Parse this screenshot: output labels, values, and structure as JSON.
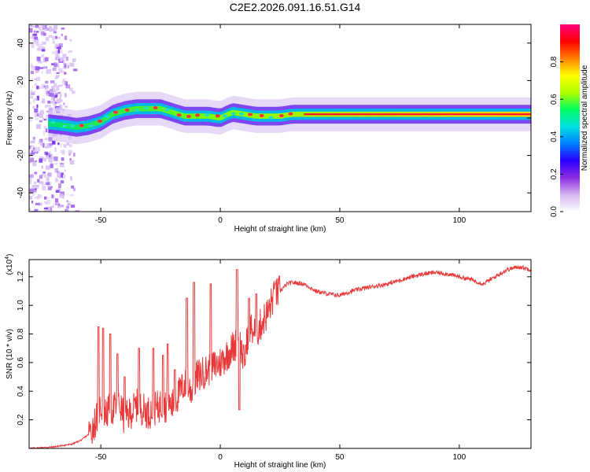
{
  "title": "C2E2.2026.091.16.51.G14",
  "chart_data": [
    {
      "type": "heatmap",
      "xlabel": "Height of straight line (km)",
      "ylabel": "Frequency (Hz)",
      "xlim": [
        -80,
        130
      ],
      "ylim": [
        -50,
        50
      ],
      "xticks": [
        -50,
        0,
        50,
        100
      ],
      "yticks": [
        -40,
        -20,
        0,
        20,
        40
      ],
      "colorbar": {
        "label": "Normalized spectral amplitude",
        "range": [
          0,
          1
        ],
        "ticks": [
          "0.0",
          "0.2",
          "0.4",
          "0.6",
          "0.8"
        ],
        "colors": [
          "#ffffff",
          "#d6b4f0",
          "#8a2be2",
          "#2a00ff",
          "#0080ff",
          "#00e0e0",
          "#00ff60",
          "#b0ff00",
          "#ffff00",
          "#ff8000",
          "#ff0000",
          "#ff0080"
        ]
      },
      "ridge": {
        "x": [
          -72,
          -65,
          -60,
          -55,
          -50,
          -45,
          -40,
          -35,
          -30,
          -25,
          -20,
          -15,
          -10,
          -5,
          0,
          5,
          10,
          15,
          20,
          25,
          30,
          40,
          60,
          90,
          130
        ],
        "freq": [
          -3,
          -4,
          -5,
          -4,
          -2,
          2,
          4,
          5,
          5,
          5,
          3,
          1,
          1,
          1,
          0,
          3,
          2,
          1,
          1,
          1,
          2,
          2,
          2,
          2,
          2
        ]
      },
      "noise_zone_x": [
        -80,
        -60
      ]
    },
    {
      "type": "line",
      "xlabel": "Height of straight line (km)",
      "ylabel": "SNR (10 * v/v)",
      "y_multiplier": "(x10",
      "y_multiplier_exp": "4",
      "y_multiplier_close": ")",
      "xlim": [
        -80,
        130
      ],
      "ylim": [
        0,
        1.32
      ],
      "xticks": [
        -50,
        0,
        50,
        100
      ],
      "yticks": [
        0.2,
        0.4,
        0.6,
        0.8,
        1.0,
        1.2
      ],
      "color": "#e8393a",
      "series": [
        {
          "x": [
            -80,
            -70,
            -62,
            -58,
            -55,
            -52,
            -50,
            -48,
            -45,
            -42,
            -40,
            -35,
            -30,
            -25,
            -20,
            -15,
            -12,
            -10,
            -5,
            0,
            5,
            8,
            10,
            12,
            15,
            18,
            20,
            22,
            25,
            28,
            30,
            35,
            40,
            45,
            50,
            55,
            60,
            70,
            80,
            85,
            90,
            95,
            100,
            105,
            110,
            115,
            120,
            125,
            130
          ],
          "y": [
            0.0,
            0.01,
            0.03,
            0.06,
            0.1,
            0.2,
            0.3,
            0.25,
            0.28,
            0.3,
            0.2,
            0.3,
            0.25,
            0.3,
            0.3,
            0.45,
            0.4,
            0.5,
            0.55,
            0.6,
            0.7,
            0.75,
            0.6,
            0.85,
            0.8,
            0.9,
            0.95,
            1.05,
            1.1,
            1.15,
            1.16,
            1.15,
            1.1,
            1.08,
            1.07,
            1.1,
            1.12,
            1.15,
            1.2,
            1.22,
            1.23,
            1.22,
            1.2,
            1.18,
            1.15,
            1.2,
            1.25,
            1.27,
            1.25
          ]
        }
      ],
      "spikes": [
        {
          "x": -51,
          "y": 0.85
        },
        {
          "x": -49,
          "y": 0.84
        },
        {
          "x": -46,
          "y": 0.8
        },
        {
          "x": -43,
          "y": 0.66
        },
        {
          "x": -40,
          "y": 0.5
        },
        {
          "x": -34,
          "y": 0.7
        },
        {
          "x": -28,
          "y": 0.7
        },
        {
          "x": -24,
          "y": 0.65
        },
        {
          "x": -22,
          "y": 0.73
        },
        {
          "x": -19,
          "y": 0.55
        },
        {
          "x": -14,
          "y": 1.05
        },
        {
          "x": -11,
          "y": 1.16
        },
        {
          "x": -4,
          "y": 1.15
        },
        {
          "x": 7,
          "y": 1.25
        },
        {
          "x": 8,
          "y": 0.27
        },
        {
          "x": 12,
          "y": 1.05
        },
        {
          "x": 15,
          "y": 1.08
        },
        {
          "x": 23,
          "y": 1.15
        }
      ]
    }
  ]
}
